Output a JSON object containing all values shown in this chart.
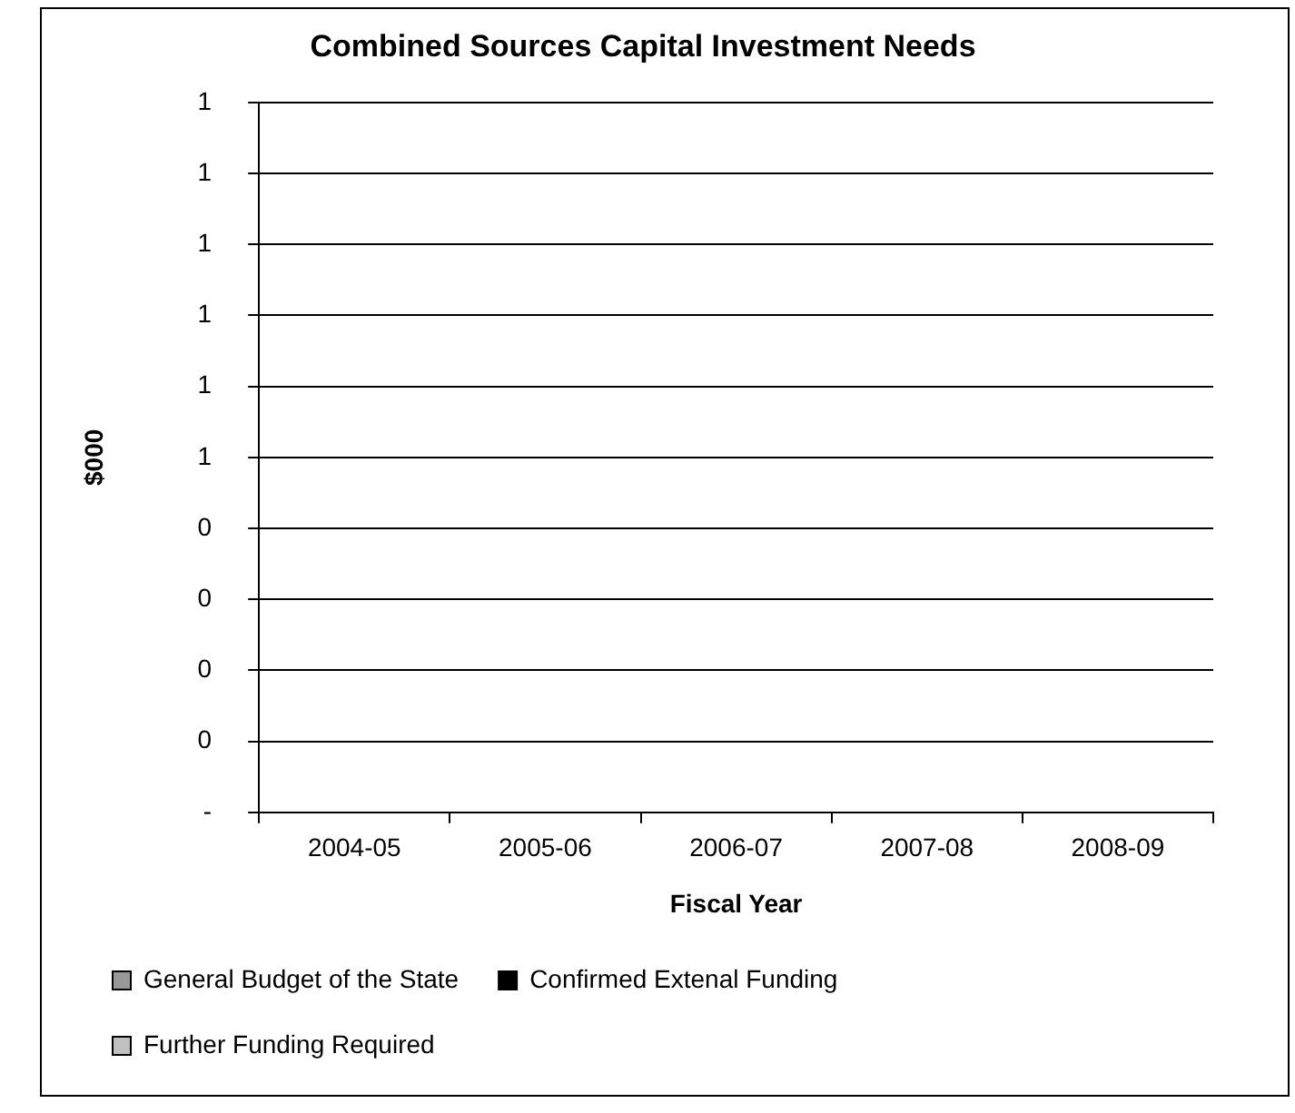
{
  "chart_data": {
    "type": "bar",
    "title": "Combined Sources Capital Investment Needs",
    "xlabel": "Fiscal Year",
    "ylabel": "$000",
    "categories": [
      "2004-05",
      "2005-06",
      "2006-07",
      "2007-08",
      "2008-09"
    ],
    "series": [
      {
        "name": "General Budget of the State",
        "color": "#999999",
        "values": [
          0,
          0,
          0,
          0,
          0
        ]
      },
      {
        "name": "Confirmed Extenal Funding",
        "color": "#000000",
        "values": [
          0,
          0,
          0,
          0,
          0
        ]
      },
      {
        "name": "Further Funding Required",
        "color": "#c0c0c0",
        "values": [
          0,
          0,
          0,
          0,
          0
        ]
      }
    ],
    "ylim": [
      0,
      1
    ],
    "yticks": [
      {
        "value": 0,
        "label": "-"
      },
      {
        "value": 0.1,
        "label": "0"
      },
      {
        "value": 0.2,
        "label": "0"
      },
      {
        "value": 0.3,
        "label": "0"
      },
      {
        "value": 0.4,
        "label": "0"
      },
      {
        "value": 0.5,
        "label": "1"
      },
      {
        "value": 0.6,
        "label": "1"
      },
      {
        "value": 0.7,
        "label": "1"
      },
      {
        "value": 0.8,
        "label": "1"
      },
      {
        "value": 0.9,
        "label": "1"
      },
      {
        "value": 1,
        "label": "1"
      }
    ],
    "grid": "y",
    "legend": "bottom"
  }
}
